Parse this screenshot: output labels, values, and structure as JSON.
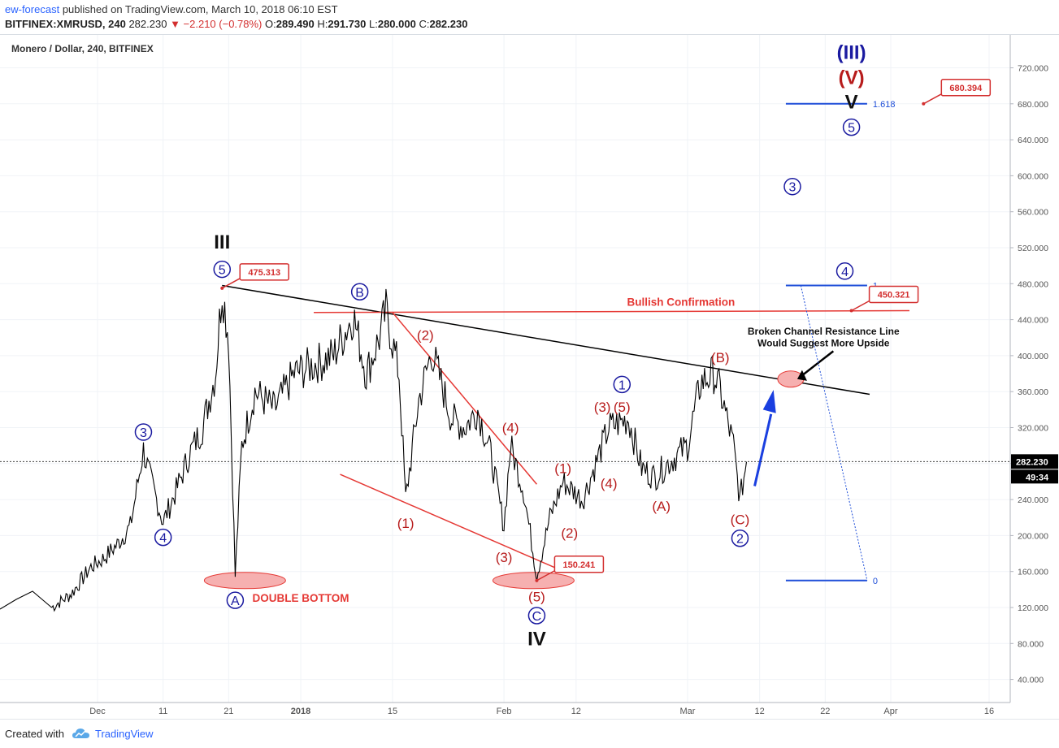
{
  "header": {
    "author": "ew-forecast",
    "published_text": "published on TradingView.com, March 10, 2018 06:10 EST",
    "symbol": "BITFINEX:XMRUSD, 240",
    "last": "282.230",
    "change": "▼ −2.210 (−0.78%)",
    "ohlc": {
      "o": "289.490",
      "h": "291.730",
      "l": "280.000",
      "c": "282.230"
    }
  },
  "footer": {
    "created_with": "Created with",
    "brand": "TradingView"
  },
  "chart_data": {
    "type": "line",
    "title": "Monero / Dollar, 240, BITFINEX",
    "xlabel": "",
    "ylabel": "",
    "ylim": [
      20,
      745
    ],
    "x_ticks": [
      "Dec",
      "11",
      "21",
      "2018",
      "15",
      "Feb",
      "12",
      "Mar",
      "12",
      "22",
      "Apr",
      "16"
    ],
    "y_ticks": [
      "720.000",
      "680.000",
      "640.000",
      "600.000",
      "560.000",
      "520.000",
      "480.000",
      "440.000",
      "400.000",
      "360.000",
      "320.000",
      "280.000",
      "240.000",
      "200.000",
      "160.000",
      "120.000",
      "80.000",
      "40.000"
    ],
    "price_label": "282.230",
    "countdown_label": "49:34",
    "series": [
      {
        "points": [
          [
            "Nov 24",
            120
          ],
          [
            "Nov 27",
            135
          ],
          [
            "Nov 30",
            165
          ],
          [
            "Dec 2",
            175
          ],
          [
            "Dec 4",
            190
          ],
          [
            "Dec 6",
            210
          ],
          [
            "Dec 8",
            295
          ],
          [
            "Dec 9",
            265
          ],
          [
            "Dec 11",
            215
          ],
          [
            "Dec 13",
            250
          ],
          [
            "Dec 15",
            290
          ],
          [
            "Dec 17",
            320
          ],
          [
            "Dec 19",
            380
          ],
          [
            "Dec 20",
            475
          ],
          [
            "Dec 21",
            420
          ],
          [
            "Dec 22",
            155
          ],
          [
            "Dec 23",
            300
          ],
          [
            "Dec 25",
            360
          ],
          [
            "Dec 28",
            340
          ],
          [
            "Dec 31",
            380
          ],
          [
            "Jan 3",
            390
          ],
          [
            "Jan 6",
            400
          ],
          [
            "Jan 9",
            445
          ],
          [
            "Jan 11",
            380
          ],
          [
            "Jan 13",
            420
          ],
          [
            "Jan 14",
            450
          ],
          [
            "Jan 16",
            380
          ],
          [
            "Jan 17",
            240
          ],
          [
            "Jan 19",
            350
          ],
          [
            "Jan 21",
            405
          ],
          [
            "Jan 24",
            330
          ],
          [
            "Jan 26",
            320
          ],
          [
            "Jan 28",
            340
          ],
          [
            "Jan 30",
            290
          ],
          [
            "Feb 1",
            210
          ],
          [
            "Feb 2",
            300
          ],
          [
            "Feb 4",
            250
          ],
          [
            "Feb 6",
            155
          ],
          [
            "Feb 8",
            220
          ],
          [
            "Feb 10",
            260
          ],
          [
            "Feb 13",
            240
          ],
          [
            "Feb 15",
            280
          ],
          [
            "Feb 17",
            320
          ],
          [
            "Feb 20",
            330
          ],
          [
            "Feb 22",
            275
          ],
          [
            "Feb 24",
            265
          ],
          [
            "Feb 26",
            280
          ],
          [
            "Mar 1",
            300
          ],
          [
            "Mar 3",
            370
          ],
          [
            "Mar 5",
            380
          ],
          [
            "Mar 6",
            360
          ],
          [
            "Mar 8",
            300
          ],
          [
            "Mar 9",
            240
          ],
          [
            "Mar 10",
            282
          ]
        ]
      }
    ],
    "annotations": [
      {
        "text": "III",
        "color": "#111111",
        "style": "roman",
        "at": [
          "Dec 20",
          527
        ]
      },
      {
        "text": "5",
        "color": "#1a1aa0",
        "style": "circle",
        "at": [
          "Dec 20",
          496
        ]
      },
      {
        "text": "475.313",
        "color": "#d32f2f",
        "style": "callout",
        "at": [
          "Dec 20",
          475
        ]
      },
      {
        "text": "3",
        "color": "#1a1aa0",
        "style": "circle",
        "at": [
          "Dec 8",
          315
        ]
      },
      {
        "text": "4",
        "color": "#1a1aa0",
        "style": "circle",
        "at": [
          "Dec 11",
          198
        ]
      },
      {
        "text": "A",
        "color": "#1a1aa0",
        "style": "circle",
        "at": [
          "Dec 22",
          128
        ]
      },
      {
        "text": "DOUBLE BOTTOM",
        "color": "#e53935",
        "style": "label",
        "at": [
          "Jan 1",
          131
        ]
      },
      {
        "text": "B",
        "color": "#1a1aa0",
        "style": "circle",
        "at": [
          "Jan 10",
          471
        ]
      },
      {
        "text": "(2)",
        "color": "#b71c1c",
        "style": "paren",
        "at": [
          "Jan 20",
          423
        ]
      },
      {
        "text": "(1)",
        "color": "#b71c1c",
        "style": "paren",
        "at": [
          "Jan 17",
          214
        ]
      },
      {
        "text": "(4)",
        "color": "#b71c1c",
        "style": "paren",
        "at": [
          "Feb 2",
          320
        ]
      },
      {
        "text": "(3)",
        "color": "#b71c1c",
        "style": "paren",
        "at": [
          "Feb 1",
          176
        ]
      },
      {
        "text": "150.241",
        "color": "#d32f2f",
        "style": "callout",
        "at": [
          "Feb 6",
          150
        ]
      },
      {
        "text": "(5)",
        "color": "#b71c1c",
        "style": "paren",
        "at": [
          "Feb 6",
          132
        ]
      },
      {
        "text": "C",
        "color": "#1a1aa0",
        "style": "circle",
        "at": [
          "Feb 6",
          111
        ]
      },
      {
        "text": "IV",
        "color": "#111111",
        "style": "roman",
        "at": [
          "Feb 6",
          86
        ]
      },
      {
        "text": "(1)",
        "color": "#b71c1c",
        "style": "paren",
        "at": [
          "Feb 10",
          275
        ]
      },
      {
        "text": "(2)",
        "color": "#b71c1c",
        "style": "paren",
        "at": [
          "Feb 11",
          203
        ]
      },
      {
        "text": "(3)",
        "color": "#b71c1c",
        "style": "paren",
        "at": [
          "Feb 16",
          343
        ]
      },
      {
        "text": "(4)",
        "color": "#b71c1c",
        "style": "paren",
        "at": [
          "Feb 17",
          258
        ]
      },
      {
        "text": "(5)",
        "color": "#b71c1c",
        "style": "paren",
        "at": [
          "Feb 19",
          343
        ]
      },
      {
        "text": "1",
        "color": "#1a1aa0",
        "style": "circle",
        "at": [
          "Feb 19",
          368
        ]
      },
      {
        "text": "(A)",
        "color": "#b71c1c",
        "style": "paren",
        "at": [
          "Feb 25",
          233
        ]
      },
      {
        "text": "(B)",
        "color": "#b71c1c",
        "style": "paren",
        "at": [
          "Mar 6",
          398
        ]
      },
      {
        "text": "(C)",
        "color": "#b71c1c",
        "style": "paren",
        "at": [
          "Mar 9",
          218
        ]
      },
      {
        "text": "2",
        "color": "#1a1aa0",
        "style": "circle",
        "at": [
          "Mar 9",
          197
        ]
      },
      {
        "text": "3",
        "color": "#1a1aa0",
        "style": "circle",
        "at": [
          "Mar 17",
          588
        ]
      },
      {
        "text": "4",
        "color": "#1a1aa0",
        "style": "circle",
        "at": [
          "Mar 25",
          494
        ]
      },
      {
        "text": "(III)",
        "color": "#1a1aa0",
        "style": "roman",
        "at": [
          "Mar 26",
          738
        ]
      },
      {
        "text": "(V)",
        "color": "#b71c1c",
        "style": "roman",
        "at": [
          "Mar 26",
          710
        ]
      },
      {
        "text": "V",
        "color": "#111111",
        "style": "roman",
        "at": [
          "Mar 26",
          683
        ]
      },
      {
        "text": "5",
        "color": "#1a1aa0",
        "style": "circle",
        "at": [
          "Mar 26",
          654
        ]
      },
      {
        "text": "680.394",
        "color": "#d32f2f",
        "style": "callout",
        "at": [
          "Apr 6",
          680
        ]
      },
      {
        "text": "450.321",
        "color": "#d32f2f",
        "style": "callout",
        "at": [
          "Mar 26",
          450
        ]
      },
      {
        "text": "Bullish Confirmation",
        "color": "#e53935",
        "style": "label",
        "at": [
          "Feb 28",
          460
        ]
      },
      {
        "text": "Broken Channel Resistance Line",
        "color": "#111111",
        "style": "note",
        "at": [
          "Mar 21",
          427
        ]
      },
      {
        "text": "Would Suggest More Upside",
        "color": "#111111",
        "style": "note",
        "at": [
          "Mar 21",
          414
        ]
      }
    ],
    "fib_levels": [
      {
        "label": "1.618",
        "value": 680
      },
      {
        "label": "1",
        "value": 478
      },
      {
        "label": "0",
        "value": 150
      }
    ],
    "colors": {
      "price": "#000000",
      "trendline": "#000000",
      "red": "#e53935",
      "blue": "#1a1aa0",
      "fib": "#1f4fd8"
    }
  }
}
